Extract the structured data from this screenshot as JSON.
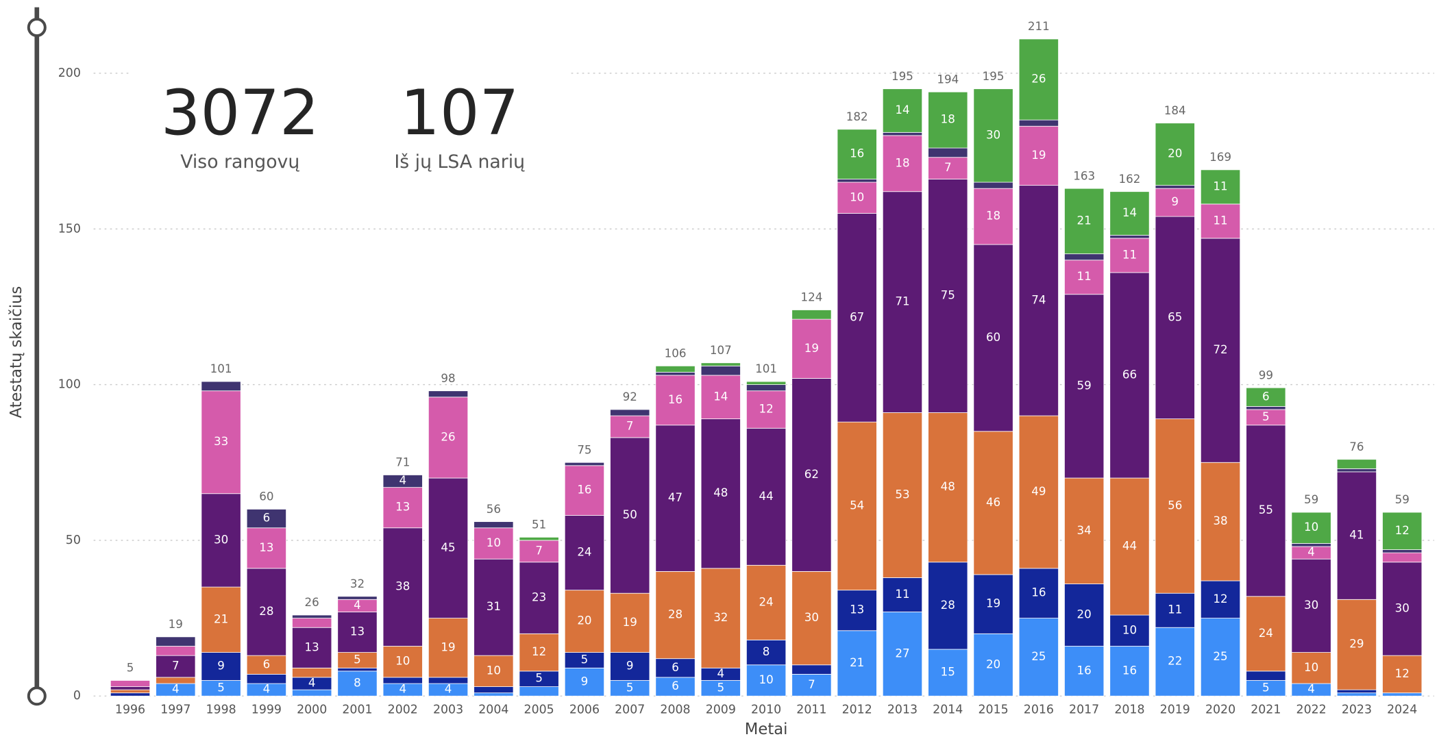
{
  "kpis": [
    {
      "value": 3072,
      "label": "Viso rangovų"
    },
    {
      "value": 107,
      "label": "Iš jų LSA narių"
    }
  ],
  "chart_data": {
    "type": "stacked_bar",
    "x_label": "Metai",
    "y_label": "Atestatų skaičius",
    "categories": [
      "1996",
      "1997",
      "1998",
      "1999",
      "2000",
      "2001",
      "2002",
      "2003",
      "2004",
      "2005",
      "2006",
      "2007",
      "2008",
      "2009",
      "2010",
      "2011",
      "2012",
      "2013",
      "2014",
      "2015",
      "2016",
      "2017",
      "2018",
      "2019",
      "2020",
      "2021",
      "2022",
      "2023",
      "2024"
    ],
    "totals": [
      5,
      19,
      101,
      60,
      26,
      32,
      71,
      98,
      56,
      51,
      75,
      92,
      106,
      107,
      101,
      124,
      182,
      195,
      194,
      195,
      211,
      163,
      162,
      184,
      169,
      99,
      59,
      76,
      59
    ],
    "series": [
      {
        "color": "#3d8ef8",
        "values": [
          0,
          4,
          5,
          4,
          2,
          8,
          4,
          4,
          1,
          3,
          9,
          5,
          6,
          5,
          10,
          7,
          21,
          27,
          15,
          20,
          25,
          16,
          16,
          22,
          25,
          5,
          4,
          1,
          1
        ]
      },
      {
        "color": "#13279a",
        "values": [
          1,
          0,
          9,
          3,
          4,
          1,
          2,
          2,
          2,
          5,
          5,
          9,
          6,
          4,
          8,
          3,
          13,
          11,
          28,
          19,
          16,
          20,
          10,
          11,
          12,
          3,
          0,
          1,
          0
        ]
      },
      {
        "color": "#d9733b",
        "values": [
          1,
          2,
          21,
          6,
          3,
          5,
          10,
          19,
          10,
          12,
          20,
          19,
          28,
          32,
          24,
          30,
          54,
          53,
          48,
          46,
          49,
          34,
          44,
          56,
          38,
          24,
          10,
          29,
          12
        ]
      },
      {
        "color": "#5c1b74",
        "values": [
          1,
          7,
          30,
          28,
          13,
          13,
          38,
          45,
          31,
          23,
          24,
          50,
          47,
          48,
          44,
          62,
          67,
          71,
          75,
          60,
          74,
          59,
          66,
          65,
          72,
          55,
          30,
          41,
          30
        ]
      },
      {
        "color": "#d55bab",
        "values": [
          2,
          3,
          33,
          13,
          3,
          4,
          13,
          26,
          10,
          7,
          16,
          7,
          16,
          14,
          12,
          19,
          10,
          18,
          7,
          18,
          19,
          11,
          11,
          9,
          11,
          5,
          4,
          0,
          3
        ]
      },
      {
        "color": "#3f3470",
        "values": [
          0,
          3,
          3,
          6,
          1,
          1,
          4,
          2,
          2,
          0,
          1,
          2,
          1,
          3,
          2,
          0,
          1,
          1,
          3,
          2,
          2,
          2,
          1,
          1,
          0,
          1,
          1,
          1,
          1
        ]
      },
      {
        "color": "#4fa846",
        "values": [
          0,
          0,
          0,
          0,
          0,
          0,
          0,
          0,
          0,
          1,
          0,
          0,
          2,
          1,
          1,
          3,
          16,
          14,
          18,
          30,
          26,
          21,
          14,
          20,
          11,
          6,
          10,
          3,
          12
        ]
      }
    ],
    "ylim": [
      0,
      220
    ],
    "yticks": [
      0,
      50,
      100,
      150,
      200
    ],
    "grid": true
  }
}
